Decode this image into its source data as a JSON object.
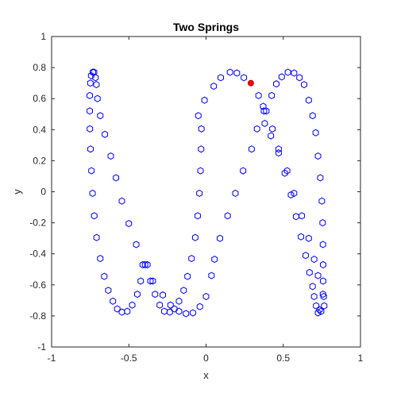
{
  "chart_data": {
    "type": "scatter",
    "title": "Two Springs",
    "xlabel": "x",
    "ylabel": "y",
    "xlim": [
      -1,
      1
    ],
    "ylim": [
      -1,
      1
    ],
    "grid": false,
    "box": true,
    "xticks": [
      "-1",
      "-0.5",
      "0",
      "0.5",
      "1"
    ],
    "yticks": [
      "-1",
      "-0.8",
      "-0.6",
      "-0.4",
      "-0.2",
      "0",
      "0.2",
      "0.4",
      "0.6",
      "0.8",
      "1"
    ],
    "series": [
      {
        "marker": "hexagon-open",
        "color": "#0000ff",
        "points": [
          [
            -0.733,
            0.77
          ],
          [
            -0.744,
            0.748
          ],
          [
            -0.749,
            0.7
          ],
          [
            -0.753,
            0.62
          ],
          [
            -0.753,
            0.52
          ],
          [
            -0.752,
            0.405
          ],
          [
            -0.748,
            0.275
          ],
          [
            -0.742,
            0.135
          ],
          [
            -0.735,
            -0.01
          ],
          [
            -0.724,
            -0.155
          ],
          [
            -0.709,
            -0.295
          ],
          [
            -0.685,
            -0.43
          ],
          [
            -0.659,
            -0.545
          ],
          [
            -0.633,
            -0.635
          ],
          [
            -0.603,
            -0.705
          ],
          [
            -0.575,
            -0.755
          ],
          [
            -0.545,
            -0.775
          ],
          [
            -0.51,
            -0.77
          ],
          [
            -0.478,
            -0.73
          ],
          [
            -0.445,
            -0.66
          ],
          [
            -0.423,
            -0.575
          ],
          [
            -0.41,
            -0.47
          ],
          [
            -0.38,
            -0.47
          ],
          [
            -0.36,
            -0.575
          ],
          [
            -0.33,
            -0.66
          ],
          [
            -0.3,
            -0.73
          ],
          [
            -0.27,
            -0.77
          ],
          [
            -0.235,
            -0.775
          ],
          [
            -0.205,
            -0.755
          ],
          [
            -0.175,
            -0.705
          ],
          [
            -0.145,
            -0.635
          ],
          [
            -0.12,
            -0.545
          ],
          [
            -0.094,
            -0.43
          ],
          [
            -0.07,
            -0.295
          ],
          [
            -0.054,
            -0.155
          ],
          [
            -0.043,
            -0.01
          ],
          [
            -0.036,
            0.135
          ],
          [
            -0.032,
            0.275
          ],
          [
            -0.03,
            0.405
          ],
          [
            -0.725,
            0.77
          ],
          [
            -0.716,
            0.735
          ],
          [
            -0.71,
            0.69
          ],
          [
            -0.703,
            0.6
          ],
          [
            -0.685,
            0.49
          ],
          [
            -0.655,
            0.37
          ],
          [
            -0.617,
            0.23
          ],
          [
            -0.583,
            0.09
          ],
          [
            -0.545,
            -0.06
          ],
          [
            -0.5,
            -0.205
          ],
          [
            -0.452,
            -0.34
          ],
          [
            -0.395,
            -0.47
          ],
          [
            -0.345,
            -0.575
          ],
          [
            -0.28,
            -0.665
          ],
          [
            -0.23,
            -0.73
          ],
          [
            -0.175,
            -0.77
          ],
          [
            -0.13,
            -0.785
          ],
          [
            -0.085,
            -0.78
          ],
          [
            -0.04,
            -0.74
          ],
          [
            0.0,
            -0.675
          ],
          [
            0.035,
            -0.54
          ],
          [
            0.055,
            -0.435
          ],
          [
            0.09,
            -0.3
          ],
          [
            0.14,
            -0.155
          ],
          [
            0.19,
            -0.01
          ],
          [
            0.24,
            0.135
          ],
          [
            0.295,
            0.275
          ],
          [
            0.33,
            0.405
          ],
          [
            0.375,
            0.52
          ],
          [
            0.39,
            0.52
          ],
          [
            0.43,
            0.405
          ],
          [
            0.47,
            0.275
          ],
          [
            0.525,
            0.135
          ],
          [
            0.57,
            -0.01
          ],
          [
            0.62,
            -0.155
          ],
          [
            0.665,
            -0.3
          ],
          [
            0.7,
            -0.435
          ],
          [
            0.725,
            -0.54
          ],
          [
            0.762,
            -0.675
          ],
          [
            0.765,
            -0.735
          ],
          [
            0.745,
            -0.77
          ],
          [
            0.725,
            -0.78
          ],
          [
            0.713,
            -0.735
          ],
          [
            0.7,
            -0.675
          ],
          [
            0.69,
            -0.61
          ],
          [
            0.67,
            -0.52
          ],
          [
            0.645,
            -0.41
          ],
          [
            0.615,
            -0.29
          ],
          [
            0.583,
            -0.16
          ],
          [
            0.55,
            -0.02
          ],
          [
            0.51,
            0.12
          ],
          [
            0.47,
            0.25
          ],
          [
            0.42,
            0.36
          ],
          [
            0.38,
            0.44
          ],
          [
            -0.05,
            0.49
          ],
          [
            -0.01,
            0.59
          ],
          [
            0.05,
            0.68
          ],
          [
            0.095,
            0.735
          ],
          [
            0.155,
            0.77
          ],
          [
            0.2,
            0.765
          ],
          [
            0.245,
            0.735
          ],
          [
            0.34,
            0.62
          ],
          [
            0.37,
            0.55
          ],
          [
            0.425,
            0.62
          ],
          [
            0.455,
            0.695
          ],
          [
            0.49,
            0.74
          ],
          [
            0.53,
            0.77
          ],
          [
            0.57,
            0.765
          ],
          [
            0.605,
            0.735
          ],
          [
            0.635,
            0.69
          ],
          [
            0.665,
            0.59
          ],
          [
            0.69,
            0.49
          ],
          [
            0.71,
            0.38
          ],
          [
            0.725,
            0.23
          ],
          [
            0.74,
            0.09
          ],
          [
            0.75,
            -0.06
          ],
          [
            0.755,
            -0.2
          ],
          [
            0.757,
            -0.34
          ],
          [
            0.758,
            -0.47
          ],
          [
            0.758,
            -0.575
          ],
          [
            0.757,
            -0.66
          ],
          [
            0.735,
            -0.76
          ]
        ]
      },
      {
        "marker": "circle-filled",
        "color": "#ff0000",
        "points": [
          [
            0.29,
            0.7
          ]
        ]
      }
    ]
  }
}
